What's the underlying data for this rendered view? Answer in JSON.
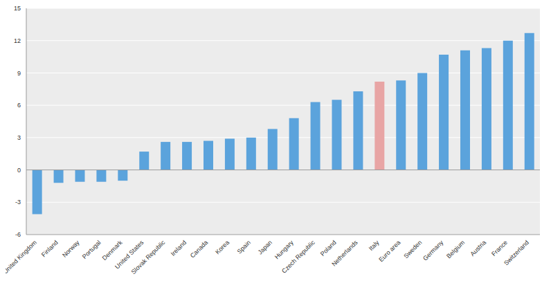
{
  "chart_data": {
    "type": "bar",
    "categories": [
      "United Kingdom",
      "Finland",
      "Norway",
      "Portugal",
      "Denmark",
      "United States",
      "Slovak Republic",
      "Ireland",
      "Canada",
      "Korea",
      "Spain",
      "Japan",
      "Hungary",
      "Czech Republic",
      "Poland",
      "Netherlands",
      "Italy",
      "Euro area",
      "Sweden",
      "Germany",
      "Belgium",
      "Austria",
      "France",
      "Switzerland"
    ],
    "values": [
      -4.1,
      -1.2,
      -1.1,
      -1.1,
      -1.0,
      1.7,
      2.6,
      2.6,
      2.7,
      2.9,
      3.0,
      3.8,
      4.8,
      6.3,
      6.5,
      7.3,
      8.2,
      8.3,
      9.0,
      10.7,
      11.1,
      11.3,
      12.0,
      12.7
    ],
    "colors": [
      "#5ba3dc",
      "#5ba3dc",
      "#5ba3dc",
      "#5ba3dc",
      "#5ba3dc",
      "#5ba3dc",
      "#5ba3dc",
      "#5ba3dc",
      "#5ba3dc",
      "#5ba3dc",
      "#5ba3dc",
      "#5ba3dc",
      "#5ba3dc",
      "#5ba3dc",
      "#5ba3dc",
      "#5ba3dc",
      "#e8a5a5",
      "#5ba3dc",
      "#5ba3dc",
      "#5ba3dc",
      "#5ba3dc",
      "#5ba3dc",
      "#5ba3dc",
      "#5ba3dc"
    ],
    "ylim": [
      -6,
      15
    ],
    "yticks": [
      -6,
      -3,
      0,
      3,
      6,
      9,
      12,
      15
    ],
    "grid": true
  }
}
